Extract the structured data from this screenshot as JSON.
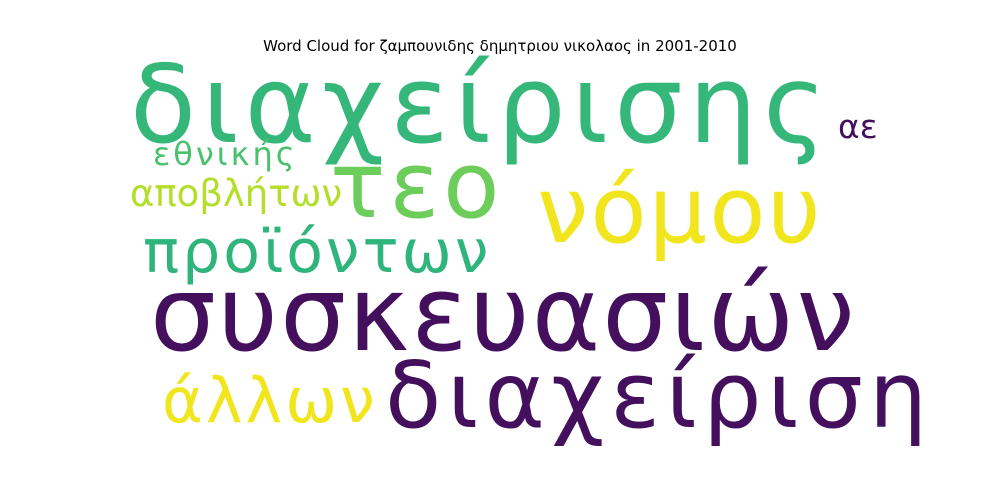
{
  "chart_data": {
    "type": "wordcloud",
    "title": "Word Cloud for ζαμπουνιδης δημητριου νικολαος in 2001-2010",
    "words": [
      {
        "text": "διαχείρισης",
        "weight": 1.0,
        "color": "#35b779"
      },
      {
        "text": "τεο",
        "weight": 0.85,
        "color": "#6ccd5a"
      },
      {
        "text": "νόμου",
        "weight": 0.8,
        "color": "#f1e51d"
      },
      {
        "text": "συσκευασιών",
        "weight": 0.98,
        "color": "#440f5c"
      },
      {
        "text": "διαχείριση",
        "weight": 0.75,
        "color": "#440f5c"
      },
      {
        "text": "προϊόντων",
        "weight": 0.55,
        "color": "#2fb47c"
      },
      {
        "text": "άλλων",
        "weight": 0.5,
        "color": "#f1e51d"
      },
      {
        "text": "αποβλήτων",
        "weight": 0.33,
        "color": "#b5de2b"
      },
      {
        "text": "εθνικής",
        "weight": 0.3,
        "color": "#4ac16d"
      },
      {
        "text": "αε",
        "weight": 0.3,
        "color": "#440f5c"
      }
    ]
  }
}
